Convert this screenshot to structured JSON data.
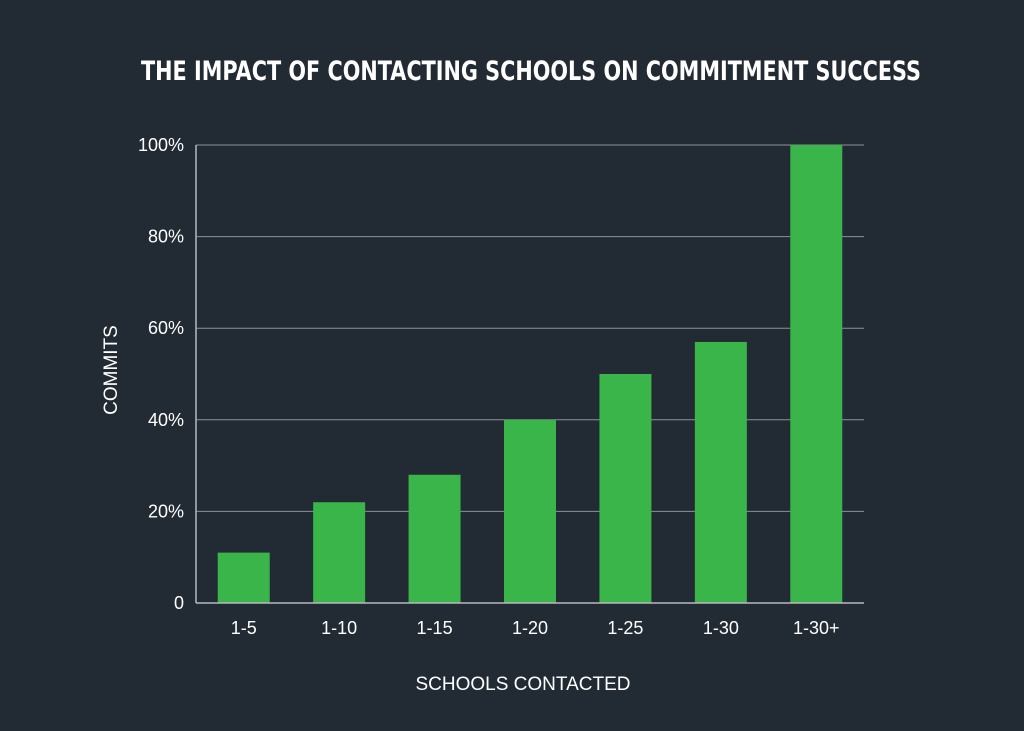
{
  "chart_data": {
    "type": "bar",
    "title": "THE IMPACT OF CONTACTING SCHOOLS ON COMMITMENT SUCCESS",
    "xlabel": "SCHOOLS CONTACTED",
    "ylabel": "COMMITS",
    "categories": [
      "1-5",
      "1-10",
      "1-15",
      "1-20",
      "1-25",
      "1-30",
      "1-30+"
    ],
    "values": [
      11,
      22,
      28,
      40,
      50,
      57,
      100
    ],
    "ylim": [
      0,
      100
    ],
    "yticks": [
      0,
      20,
      40,
      60,
      80,
      100
    ],
    "ytick_labels": [
      "0",
      "20%",
      "40%",
      "60%",
      "80%",
      "100%"
    ],
    "grid": true,
    "legend": false,
    "colors": {
      "background": "#222a33",
      "bar": "#39b54a",
      "text": "#ffffff",
      "grid": "#8a9199"
    }
  }
}
